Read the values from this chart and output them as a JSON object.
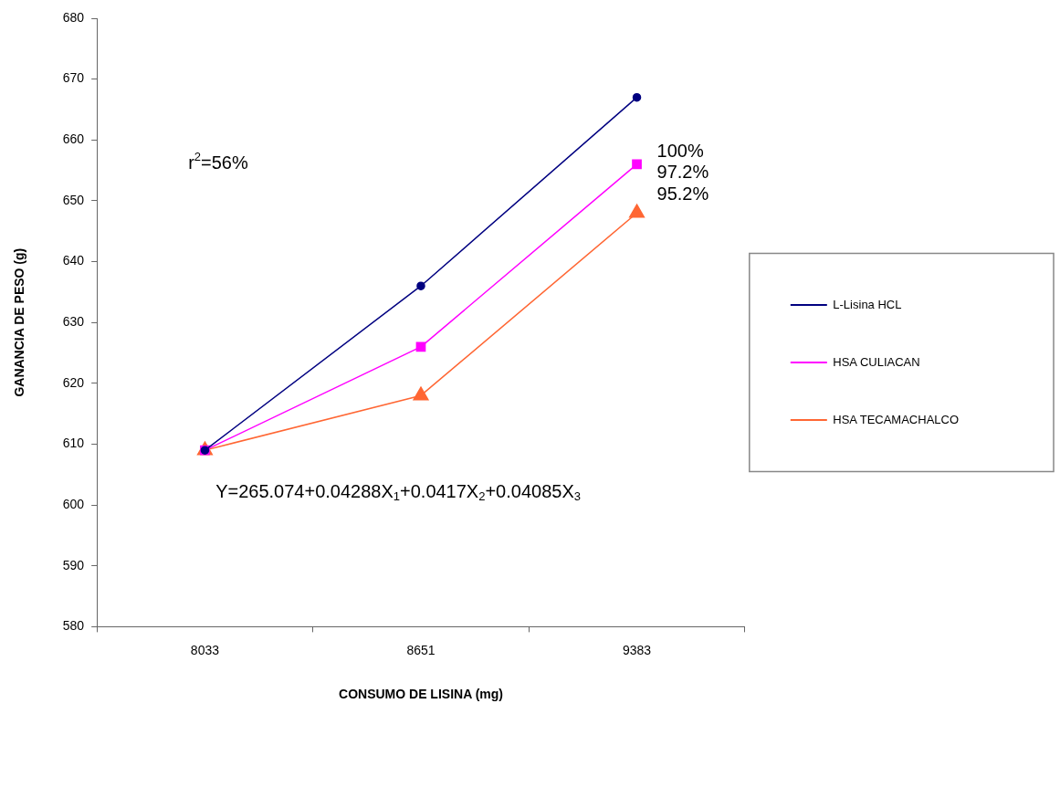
{
  "chart_data": {
    "type": "line",
    "xlabel": "CONSUMO DE LISINA (mg)",
    "ylabel": "GANANCIA DE PESO (g)",
    "categories": [
      "8033",
      "8651",
      "9383"
    ],
    "series": [
      {
        "name": "L-Lisina HCL",
        "color": "#000080",
        "marker": "circle",
        "values": [
          609,
          636,
          667
        ]
      },
      {
        "name": "HSA CULIACAN",
        "color": "#ff00ff",
        "marker": "square",
        "values": [
          609,
          626,
          656
        ]
      },
      {
        "name": "HSA TECAMACHALCO",
        "color": "#ff6633",
        "marker": "triangle",
        "values": [
          609,
          618,
          648
        ]
      }
    ],
    "ylim": [
      580,
      680
    ],
    "yticks": [
      580,
      590,
      600,
      610,
      620,
      630,
      640,
      650,
      660,
      670,
      680
    ],
    "grid": false,
    "legend": "right",
    "line_style": "solid",
    "annotations": [
      "r$^{2}$=56%",
      "100%",
      "97.2%",
      "95.2%",
      "Y=265.074+0.04288X$_{1}$+0.0417X$_{2}$+0.04085X$_{3}$"
    ]
  }
}
